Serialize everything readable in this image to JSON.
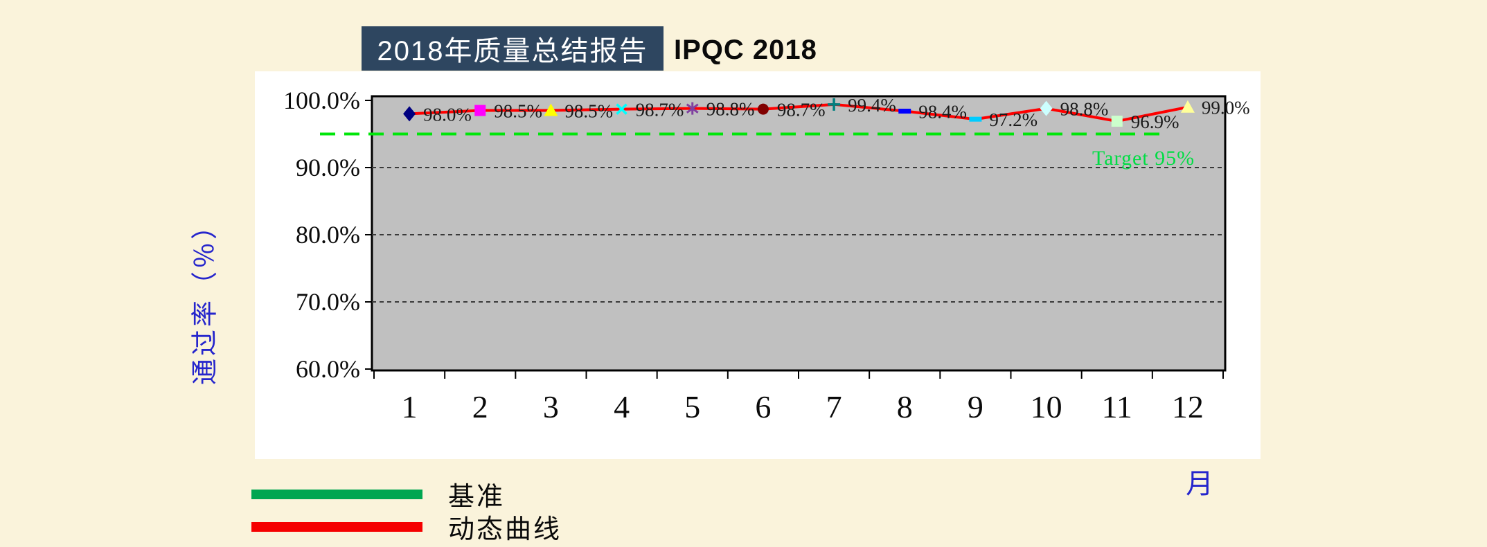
{
  "page": {
    "background_color": "#FAF3DB"
  },
  "header": {
    "title": "2018年质量总结报告",
    "title_bg_color": "#2E4660",
    "subtitle": "IPQC 2018"
  },
  "chart_data": {
    "type": "line",
    "title": "2018年质量总结报告 IPQC 2018",
    "categories": [
      "1",
      "2",
      "3",
      "4",
      "5",
      "6",
      "7",
      "8",
      "9",
      "10",
      "11",
      "12"
    ],
    "xlabel": "月",
    "ylabel": "通过率（％）",
    "axis_title_color": "#2525CC",
    "ylim": [
      60,
      100
    ],
    "plot_bg_color": "#C0C0C0",
    "grid_on": true,
    "gridline_values": [
      90,
      80,
      70
    ],
    "y_ticks": [
      {
        "value": 100,
        "label": "100.0%"
      },
      {
        "value": 90,
        "label": "90.0%"
      },
      {
        "value": 80,
        "label": "80.0%"
      },
      {
        "value": 70,
        "label": "70.0%"
      },
      {
        "value": 60,
        "label": "60.0%"
      }
    ],
    "series": [
      {
        "name": "动态曲线",
        "type": "line",
        "color": "#FF0000",
        "values": [
          98.0,
          98.5,
          98.5,
          98.7,
          98.8,
          98.7,
          99.4,
          98.4,
          97.2,
          98.8,
          96.9,
          99.0
        ],
        "point_labels": [
          "98.0%",
          "98.5%",
          "98.5%",
          "98.7%",
          "98.8%",
          "98.7%",
          "99.4%",
          "98.4%",
          "97.2%",
          "98.8%",
          "96.9%",
          "99.0%"
        ],
        "label_color": "#1a1a1a",
        "markers": [
          {
            "shape": "diamond",
            "color": "#000080"
          },
          {
            "shape": "square",
            "color": "#FF00FF"
          },
          {
            "shape": "triangle",
            "color": "#FFFF00"
          },
          {
            "shape": "x",
            "color": "#00FFFF"
          },
          {
            "shape": "asterisk",
            "color": "#8040A0"
          },
          {
            "shape": "circle",
            "color": "#800000"
          },
          {
            "shape": "plus",
            "color": "#008080"
          },
          {
            "shape": "dash",
            "color": "#0000FF"
          },
          {
            "shape": "dash",
            "color": "#00CCFF"
          },
          {
            "shape": "diamond",
            "color": "#CCFFFF"
          },
          {
            "shape": "square",
            "color": "#CCFFCC"
          },
          {
            "shape": "triangle",
            "color": "#FFFF99"
          }
        ]
      },
      {
        "name": "基准",
        "type": "target-line",
        "style": "dashed",
        "color": "#00E60A",
        "value": 95,
        "annotation": "Target 95%",
        "annotation_color": "#00DD44"
      }
    ],
    "legend_position": "bottom-left",
    "legend": [
      {
        "label": "基准",
        "color": "#00A651"
      },
      {
        "label": "动态曲线",
        "color": "#F50000"
      }
    ]
  }
}
